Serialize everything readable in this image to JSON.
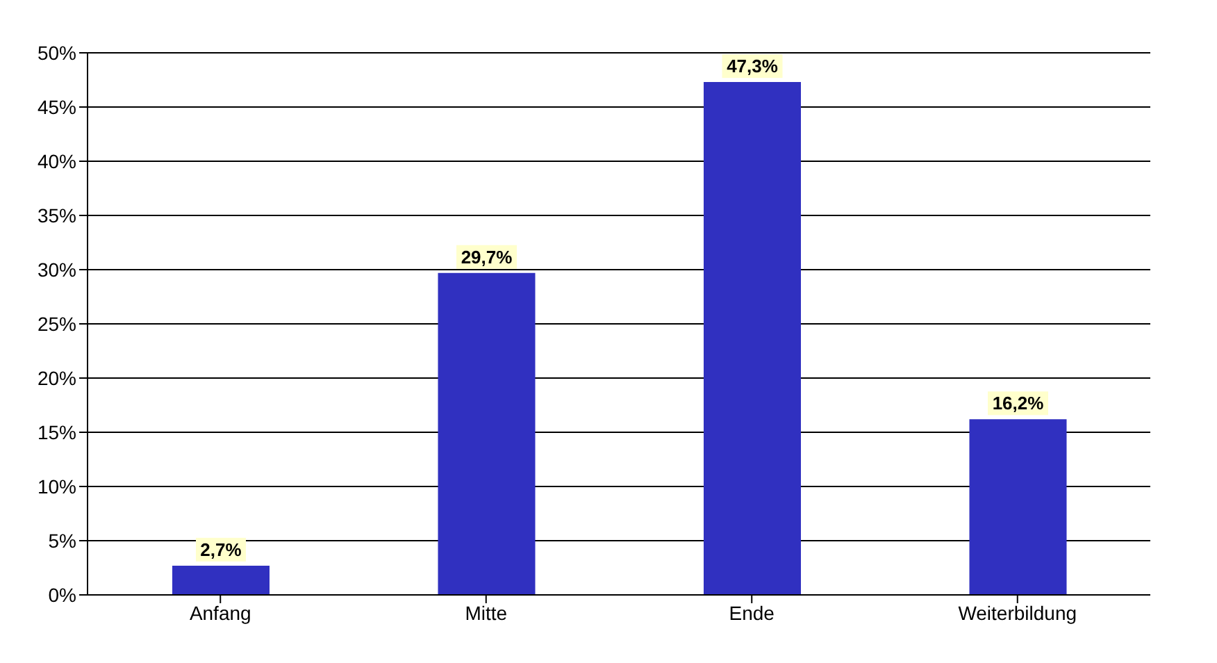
{
  "chart_data": {
    "type": "bar",
    "categories": [
      "Anfang",
      "Mitte",
      "Ende",
      "Weiterbildung"
    ],
    "values": [
      2.7,
      29.7,
      47.3,
      16.2
    ],
    "color": "#3030c0",
    "value_labels": [
      "2,7%",
      "29,7%",
      "47,3%",
      "16,2%"
    ],
    "ylim": [
      0,
      50
    ],
    "yticks": [
      {
        "value": 0,
        "label": "0%"
      },
      {
        "value": 5,
        "label": "5%"
      },
      {
        "value": 10,
        "label": "10%"
      },
      {
        "value": 15,
        "label": "15%"
      },
      {
        "value": 20,
        "label": "20%"
      },
      {
        "value": 25,
        "label": "25%"
      },
      {
        "value": 30,
        "label": "30%"
      },
      {
        "value": 35,
        "label": "35%"
      },
      {
        "value": 40,
        "label": "40%"
      },
      {
        "value": 45,
        "label": "45%"
      },
      {
        "value": 50,
        "label": "50%"
      }
    ],
    "grid": "y",
    "legend": false
  }
}
